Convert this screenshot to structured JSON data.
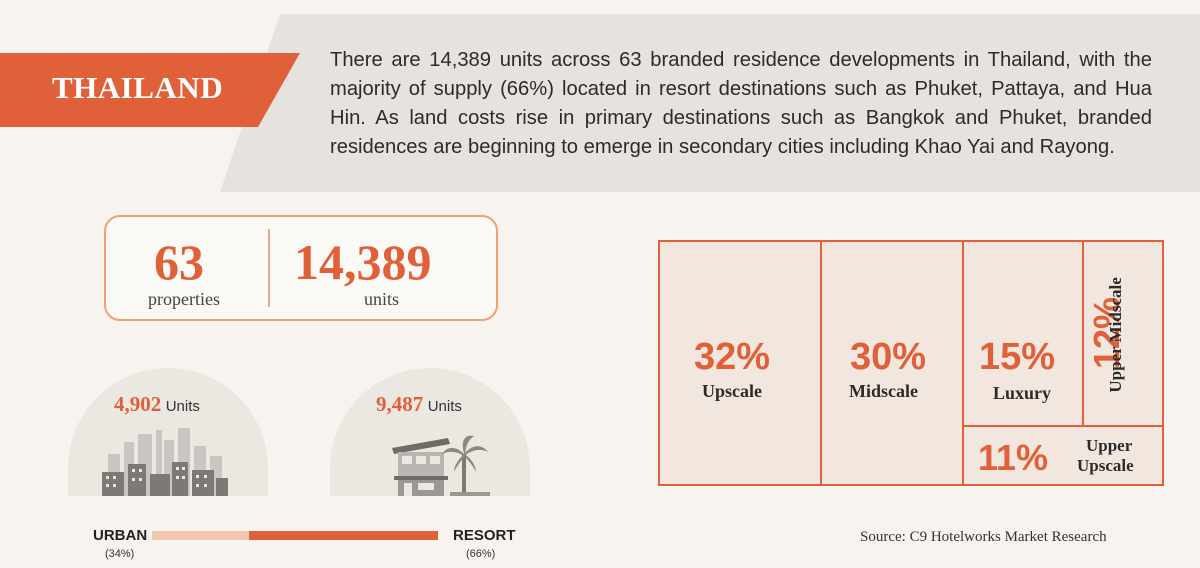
{
  "header": {
    "country": "THAILAND",
    "intro": "There are 14,389 units across 63 branded residence developments in Thailand, with the majority of supply (66%) located in resort destinations such as Phuket, Pattaya, and Hua Hin. As land costs rise in primary destinations such as Bangkok and Phuket, branded residences are beginning to emerge in secondary cities including Khao Yai and Rayong."
  },
  "stats": {
    "properties_value": "63",
    "properties_label": "properties",
    "units_value": "14,389",
    "units_label": "units"
  },
  "urban": {
    "units_value": "4,902",
    "units_label": "Units",
    "icon": "city-skyline-icon",
    "label": "URBAN",
    "pct": "(34%)",
    "share": 0.34
  },
  "resort": {
    "units_value": "9,487",
    "units_label": "Units",
    "icon": "resort-villa-icon",
    "label": "RESORT",
    "pct": "(66%)",
    "share": 0.66
  },
  "segments": [
    {
      "pct": "32%",
      "label": "Upscale",
      "share": 32
    },
    {
      "pct": "30%",
      "label": "Midscale",
      "share": 30
    },
    {
      "pct": "15%",
      "label": "Luxury",
      "share": 15
    },
    {
      "pct": "12%",
      "label": "Upper Midscale",
      "share": 12
    },
    {
      "pct": "11%",
      "label_line1": "Upper",
      "label_line2": "Upscale",
      "share": 11
    }
  ],
  "source": "Source: C9 Hotelworks Market Research",
  "colors": {
    "accent": "#e0603a",
    "accent_light": "#f1c8ad",
    "band": "#e6e3de",
    "background": "#f7f4ef",
    "treemap_fill": "#f1e7de"
  }
}
